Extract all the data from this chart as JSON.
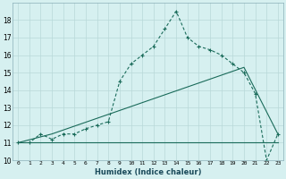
{
  "xlabel": "Humidex (Indice chaleur)",
  "background_color": "#d6f0f0",
  "grid_color": "#b8d8d8",
  "line_color": "#1a6b5a",
  "xlim": [
    -0.5,
    23.5
  ],
  "ylim": [
    10,
    19
  ],
  "xticks": [
    0,
    1,
    2,
    3,
    4,
    5,
    6,
    7,
    8,
    9,
    10,
    11,
    12,
    13,
    14,
    15,
    16,
    17,
    18,
    19,
    20,
    21,
    22,
    23
  ],
  "yticks": [
    10,
    11,
    12,
    13,
    14,
    15,
    16,
    17,
    18
  ],
  "series1_x": [
    0,
    1,
    2,
    3,
    4,
    5,
    6,
    7,
    8,
    9,
    10,
    11,
    12,
    13,
    14,
    15,
    16,
    17,
    18,
    19,
    20,
    21,
    22,
    23
  ],
  "series1_y": [
    11,
    11,
    11.5,
    11.2,
    11.5,
    11.5,
    11.8,
    12.0,
    12.2,
    14.5,
    15.5,
    16.0,
    16.5,
    17.5,
    18.5,
    17.0,
    16.5,
    16.3,
    16.0,
    15.5,
    15.0,
    13.8,
    10.0,
    11.5
  ],
  "series2_x": [
    0,
    1,
    2,
    3,
    4,
    5,
    6,
    7,
    8,
    9,
    10,
    11,
    12,
    13,
    14,
    15,
    16,
    17,
    18,
    19,
    20,
    21,
    22,
    23
  ],
  "series2_y": [
    11,
    11,
    11,
    11,
    11,
    11,
    11,
    11,
    11,
    11,
    11,
    11,
    11,
    11,
    11,
    11,
    11,
    11,
    11,
    11,
    11,
    11,
    11,
    11
  ],
  "series3_x": [
    0,
    3,
    20,
    23
  ],
  "series3_y": [
    11,
    11.5,
    15.3,
    11.5
  ]
}
